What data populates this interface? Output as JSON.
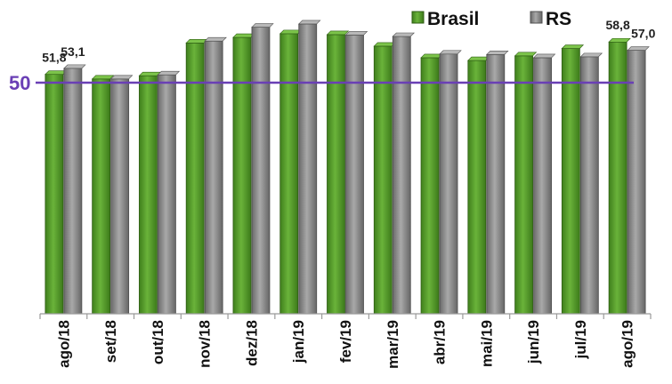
{
  "chart_data": {
    "type": "bar",
    "categories": [
      "ago/18",
      "set/18",
      "out/18",
      "nov/18",
      "dez/18",
      "jan/19",
      "fev/19",
      "mar/19",
      "abr/19",
      "mai/19",
      "jun/19",
      "jul/19",
      "ago/19"
    ],
    "series": [
      {
        "name": "Brasil",
        "color": "#5aa02c",
        "values": [
          51.8,
          50.8,
          51.5,
          58.6,
          59.8,
          60.6,
          60.4,
          57.9,
          55.4,
          54.8,
          55.8,
          57.4,
          58.8
        ]
      },
      {
        "name": "RS",
        "color": "#8a8a8a",
        "values": [
          53.1,
          50.8,
          51.7,
          59.0,
          62.0,
          62.7,
          60.3,
          60.0,
          56.2,
          56.1,
          55.4,
          55.6,
          57.0
        ]
      }
    ],
    "data_labels": [
      {
        "series": "Brasil",
        "category": "ago/18",
        "text": "51,8"
      },
      {
        "series": "RS",
        "category": "ago/18",
        "text": "53,1"
      },
      {
        "series": "Brasil",
        "category": "ago/19",
        "text": "58,8"
      },
      {
        "series": "RS",
        "category": "ago/19",
        "text": "57,0"
      }
    ],
    "reference_line": {
      "value": 50,
      "label": "50",
      "color": "#6a3fb5"
    },
    "ylim": [
      0,
      65
    ],
    "grid": false,
    "legend_position": "top-right",
    "title": "",
    "xlabel": "",
    "ylabel": ""
  }
}
